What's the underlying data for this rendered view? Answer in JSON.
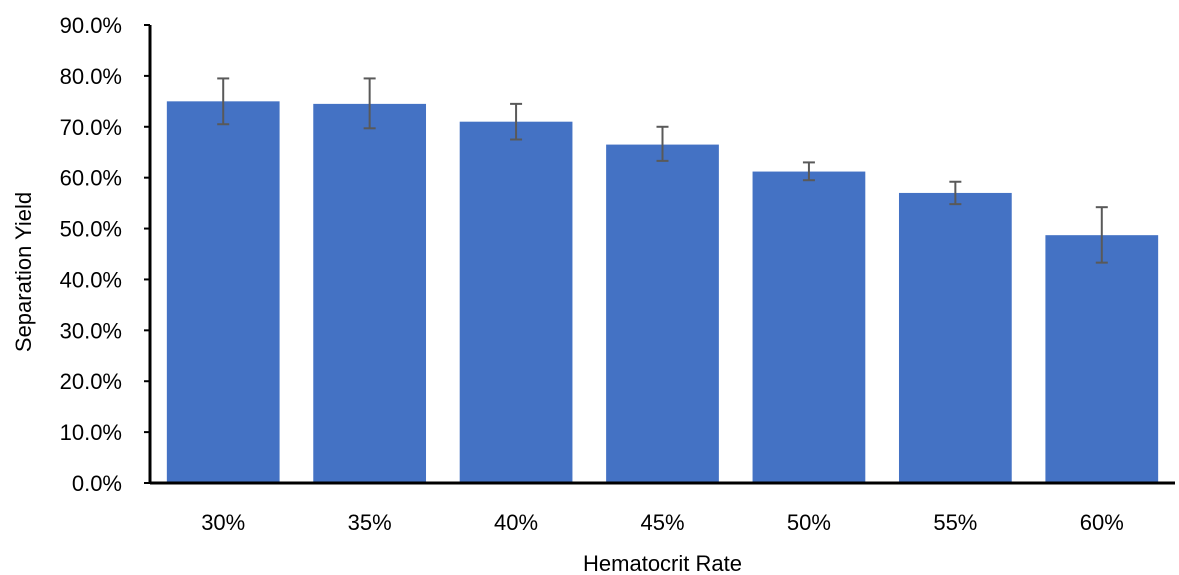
{
  "chart_data": {
    "type": "bar",
    "title": "",
    "xlabel": "Hematocrit Rate",
    "ylabel": "Separation Yield",
    "categories": [
      "30%",
      "35%",
      "40%",
      "45%",
      "50%",
      "55%",
      "60%"
    ],
    "values": [
      0.75,
      0.745,
      0.71,
      0.665,
      0.612,
      0.57,
      0.487
    ],
    "error_low": [
      0.705,
      0.697,
      0.675,
      0.633,
      0.595,
      0.548,
      0.433
    ],
    "error_high": [
      0.795,
      0.795,
      0.745,
      0.7,
      0.63,
      0.592,
      0.542
    ],
    "ylim": [
      0,
      0.9
    ],
    "yticks": [
      "0.0%",
      "10.0%",
      "20.0%",
      "30.0%",
      "40.0%",
      "50.0%",
      "60.0%",
      "70.0%",
      "80.0%",
      "90.0%"
    ],
    "grid": false,
    "legend": "none",
    "bar_color": "#4472C4",
    "error_bar_color": "#595959",
    "axis_color": "#000000"
  }
}
